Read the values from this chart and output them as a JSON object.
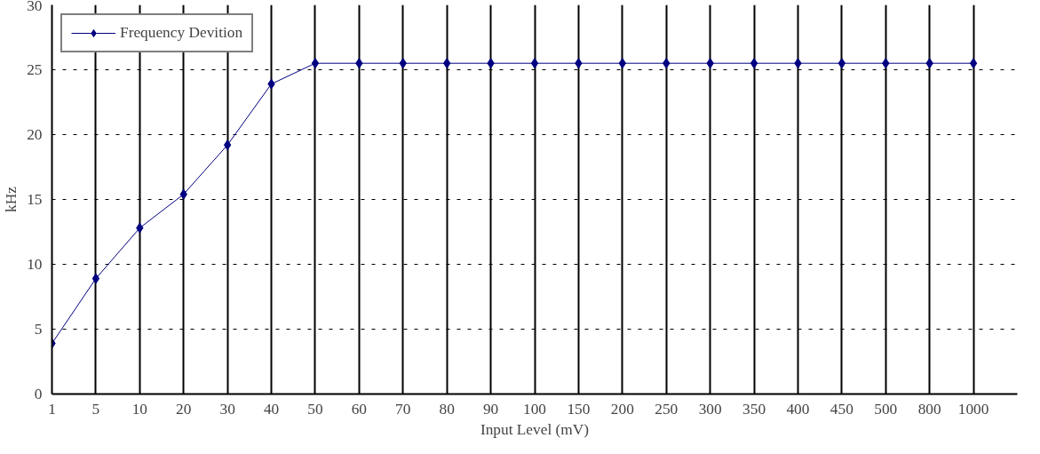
{
  "chart_data": {
    "type": "line",
    "xlabel": "Input Level (mV)",
    "ylabel": "kHz",
    "categories": [
      "1",
      "5",
      "10",
      "20",
      "30",
      "40",
      "50",
      "60",
      "70",
      "80",
      "90",
      "100",
      "150",
      "200",
      "250",
      "300",
      "350",
      "400",
      "450",
      "500",
      "800",
      "1000"
    ],
    "series": [
      {
        "name": "Frequency Devition",
        "color": "#000080",
        "values": [
          3.9,
          8.9,
          12.8,
          15.4,
          19.2,
          23.9,
          25.5,
          25.5,
          25.5,
          25.5,
          25.5,
          25.5,
          25.5,
          25.5,
          25.5,
          25.5,
          25.5,
          25.5,
          25.5,
          25.5,
          25.5,
          25.5
        ]
      }
    ],
    "ylim": [
      0,
      30
    ],
    "yticks": [
      0,
      5,
      10,
      15,
      20,
      25,
      30
    ],
    "grid": true,
    "legend": "top",
    "marker": "diamond",
    "line_style": "solid"
  }
}
